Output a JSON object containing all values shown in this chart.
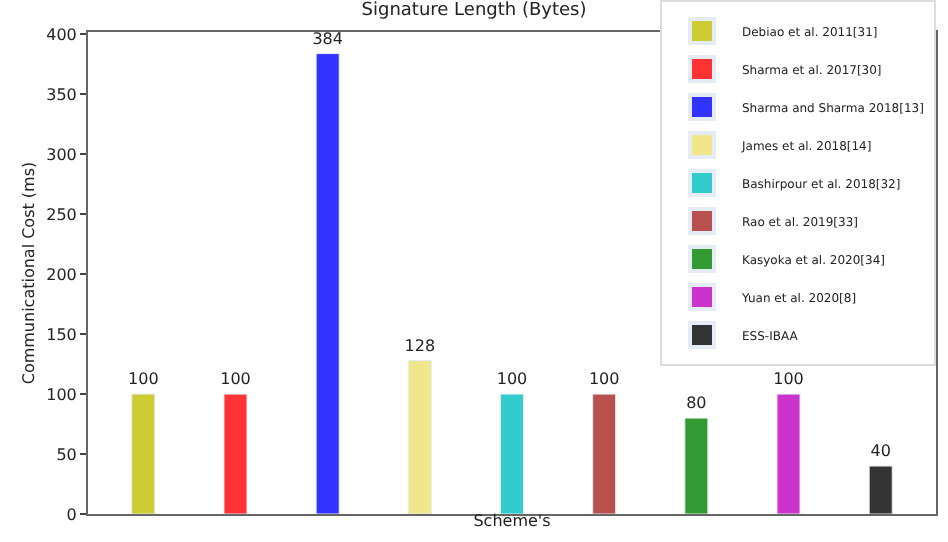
{
  "chart_data": {
    "type": "bar",
    "title": "Signature Length (Bytes)",
    "xlabel": "Scheme's",
    "ylabel": "Communicational Cost (ms)",
    "categories": [
      null,
      null,
      null,
      null,
      null,
      null,
      null,
      null,
      null
    ],
    "series": [
      {
        "name": "Debiao et al. 2011[31]",
        "color": "#cccc33",
        "values": [
          100,
          null,
          null,
          null,
          null,
          null,
          null,
          null,
          null
        ]
      },
      {
        "name": "Sharma et al. 2017[30]",
        "color": "#ff3333",
        "values": [
          null,
          100,
          null,
          null,
          null,
          null,
          null,
          null,
          null
        ]
      },
      {
        "name": "Sharma and Sharma 2018[13]",
        "color": "#3333ff",
        "values": [
          null,
          null,
          384,
          null,
          null,
          null,
          null,
          null,
          null
        ]
      },
      {
        "name": "James et al. 2018[14]",
        "color": "#f0e68c",
        "values": [
          null,
          null,
          null,
          128,
          null,
          null,
          null,
          null,
          null
        ]
      },
      {
        "name": "Bashirpour et al. 2018[32]",
        "color": "#33cccc",
        "values": [
          null,
          null,
          null,
          null,
          100,
          null,
          null,
          null,
          null
        ]
      },
      {
        "name": "Rao et al. 2019[33]",
        "color": "#b85050",
        "values": [
          null,
          null,
          null,
          null,
          null,
          100,
          null,
          null,
          null
        ]
      },
      {
        "name": "Kasyoka et al. 2020[34]",
        "color": "#339933",
        "values": [
          null,
          null,
          null,
          null,
          null,
          null,
          80,
          null,
          null
        ]
      },
      {
        "name": "Yuan et al. 2020[8]",
        "color": "#cc33cc",
        "values": [
          null,
          null,
          null,
          null,
          null,
          null,
          null,
          100,
          null
        ]
      },
      {
        "name": "ESS-IBAA",
        "color": "#333333",
        "values": [
          null,
          null,
          null,
          null,
          null,
          null,
          null,
          null,
          40
        ]
      }
    ],
    "ylim": [
      0,
      402
    ],
    "yticks": [
      0,
      50,
      100,
      150,
      200,
      250,
      300,
      350,
      400
    ],
    "data_labels": true,
    "legend": "top right",
    "tick_labels": "y"
  }
}
